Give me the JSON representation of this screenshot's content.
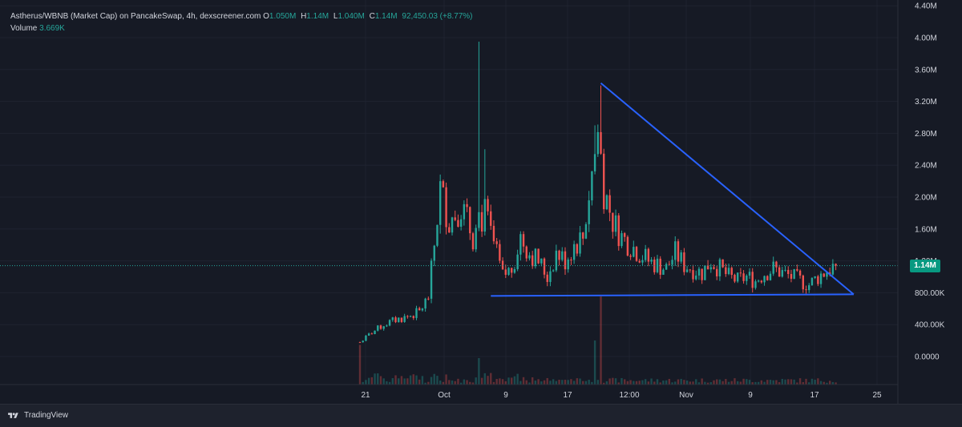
{
  "legend": {
    "title": "Astherus/WBNB (Market Cap) on PancakeSwap, 4h, dexscreener.com",
    "o_label": "O",
    "o_value": "1.050M",
    "h_label": "H",
    "h_value": "1.14M",
    "l_label": "L",
    "l_value": "1.040M",
    "c_label": "C",
    "c_value": "1.14M",
    "change": "92,450.03 (+8.77%)",
    "volume_label": "Volume",
    "volume_value": "3.669K"
  },
  "last_price_label": "1.14M",
  "footer": {
    "brand": "TradingView",
    "logo_icon": "tradingview-logo-icon"
  },
  "colors": {
    "background": "#161a25",
    "up": "#26a69a",
    "down": "#ef5350",
    "trendline": "#2962ff",
    "grid": "#1f2330",
    "price_tag": "#089981"
  },
  "chart_data": {
    "type": "candlestick",
    "x_ticks": [
      "21",
      "Oct",
      "9",
      "17",
      "12:00",
      "Nov",
      "9",
      "17",
      "25"
    ],
    "y_ticks": [
      "0.0000",
      "400.00K",
      "800.00K",
      "1.20M",
      "1.60M",
      "2.00M",
      "2.40M",
      "2.80M",
      "3.20M",
      "3.60M",
      "4.00M",
      "4.40M"
    ],
    "y_tick_values": [
      0,
      400000,
      800000,
      1200000,
      1600000,
      2000000,
      2400000,
      2800000,
      3200000,
      3600000,
      4000000,
      4400000
    ],
    "last_price": 1140000,
    "price_path": [
      [
        0,
        180000
      ],
      [
        4,
        300000
      ],
      [
        8,
        400000
      ],
      [
        12,
        460000
      ],
      [
        16,
        500000
      ],
      [
        20,
        560000
      ],
      [
        23,
        750000
      ],
      [
        25,
        1400000
      ],
      [
        27,
        2100000
      ],
      [
        30,
        1700000
      ],
      [
        34,
        1900000
      ],
      [
        38,
        1500000
      ],
      [
        42,
        1800000
      ],
      [
        45,
        1400000
      ],
      [
        48,
        1000000
      ],
      [
        51,
        1100000
      ],
      [
        54,
        1500000
      ],
      [
        57,
        1300000
      ],
      [
        60,
        1200000
      ],
      [
        63,
        1000000
      ],
      [
        66,
        1300000
      ],
      [
        69,
        1200000
      ],
      [
        72,
        1400000
      ],
      [
        75,
        1500000
      ],
      [
        78,
        2300000
      ],
      [
        80,
        2800000
      ],
      [
        82,
        2100000
      ],
      [
        85,
        1700000
      ],
      [
        88,
        1500000
      ],
      [
        91,
        1400000
      ],
      [
        94,
        1300000
      ],
      [
        97,
        1200000
      ],
      [
        100,
        1150000
      ],
      [
        103,
        1100000
      ],
      [
        106,
        1300000
      ],
      [
        109,
        1150000
      ],
      [
        112,
        1100000
      ],
      [
        115,
        1050000
      ],
      [
        118,
        1200000
      ],
      [
        121,
        1100000
      ],
      [
        124,
        1000000
      ],
      [
        127,
        950000
      ],
      [
        130,
        1000000
      ],
      [
        133,
        950000
      ],
      [
        136,
        1050000
      ],
      [
        139,
        1100000
      ],
      [
        142,
        1050000
      ],
      [
        145,
        1000000
      ],
      [
        148,
        950000
      ],
      [
        151,
        900000
      ],
      [
        154,
        1000000
      ],
      [
        157,
        1080000
      ],
      [
        160,
        1140000
      ]
    ],
    "spikes": [
      [
        40,
        3950000
      ],
      [
        42,
        2600000
      ],
      [
        81,
        3400000
      ],
      [
        79,
        2900000
      ]
    ],
    "volume_spikes": [
      [
        0,
        0.45
      ],
      [
        40,
        0.3
      ],
      [
        79,
        0.5
      ],
      [
        81,
        1.0
      ]
    ],
    "trendlines": [
      {
        "from": [
          81,
          3430000
        ],
        "to": [
          166,
          780000
        ]
      },
      {
        "from": [
          44,
          760000
        ],
        "to": [
          166,
          780000
        ]
      }
    ],
    "grid": true
  }
}
